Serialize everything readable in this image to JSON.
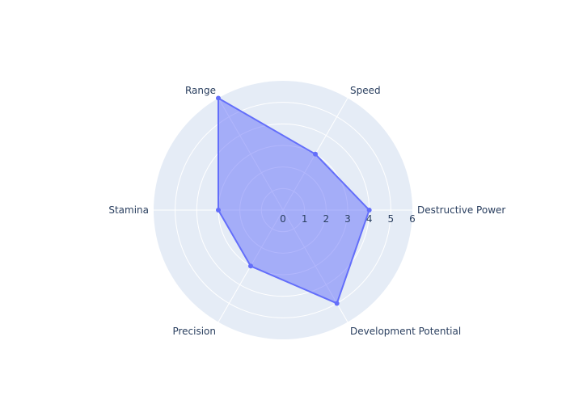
{
  "chart_data": {
    "type": "radar",
    "categories": [
      "Destructive Power",
      "Speed",
      "Range",
      "Stamina",
      "Precision",
      "Development Potential"
    ],
    "series": [
      {
        "values": [
          4,
          3,
          6,
          3,
          3,
          5
        ]
      }
    ],
    "rlim": [
      0,
      6
    ],
    "radial_ticks": [
      "0",
      "1",
      "2",
      "3",
      "4",
      "5",
      "6"
    ],
    "grid": true,
    "legend": "none",
    "colors": {
      "background": "#e5ecf6",
      "grid": "#ffffff",
      "line": "#636efa",
      "fill": "#636efa",
      "text": "#2a3f5f"
    }
  }
}
